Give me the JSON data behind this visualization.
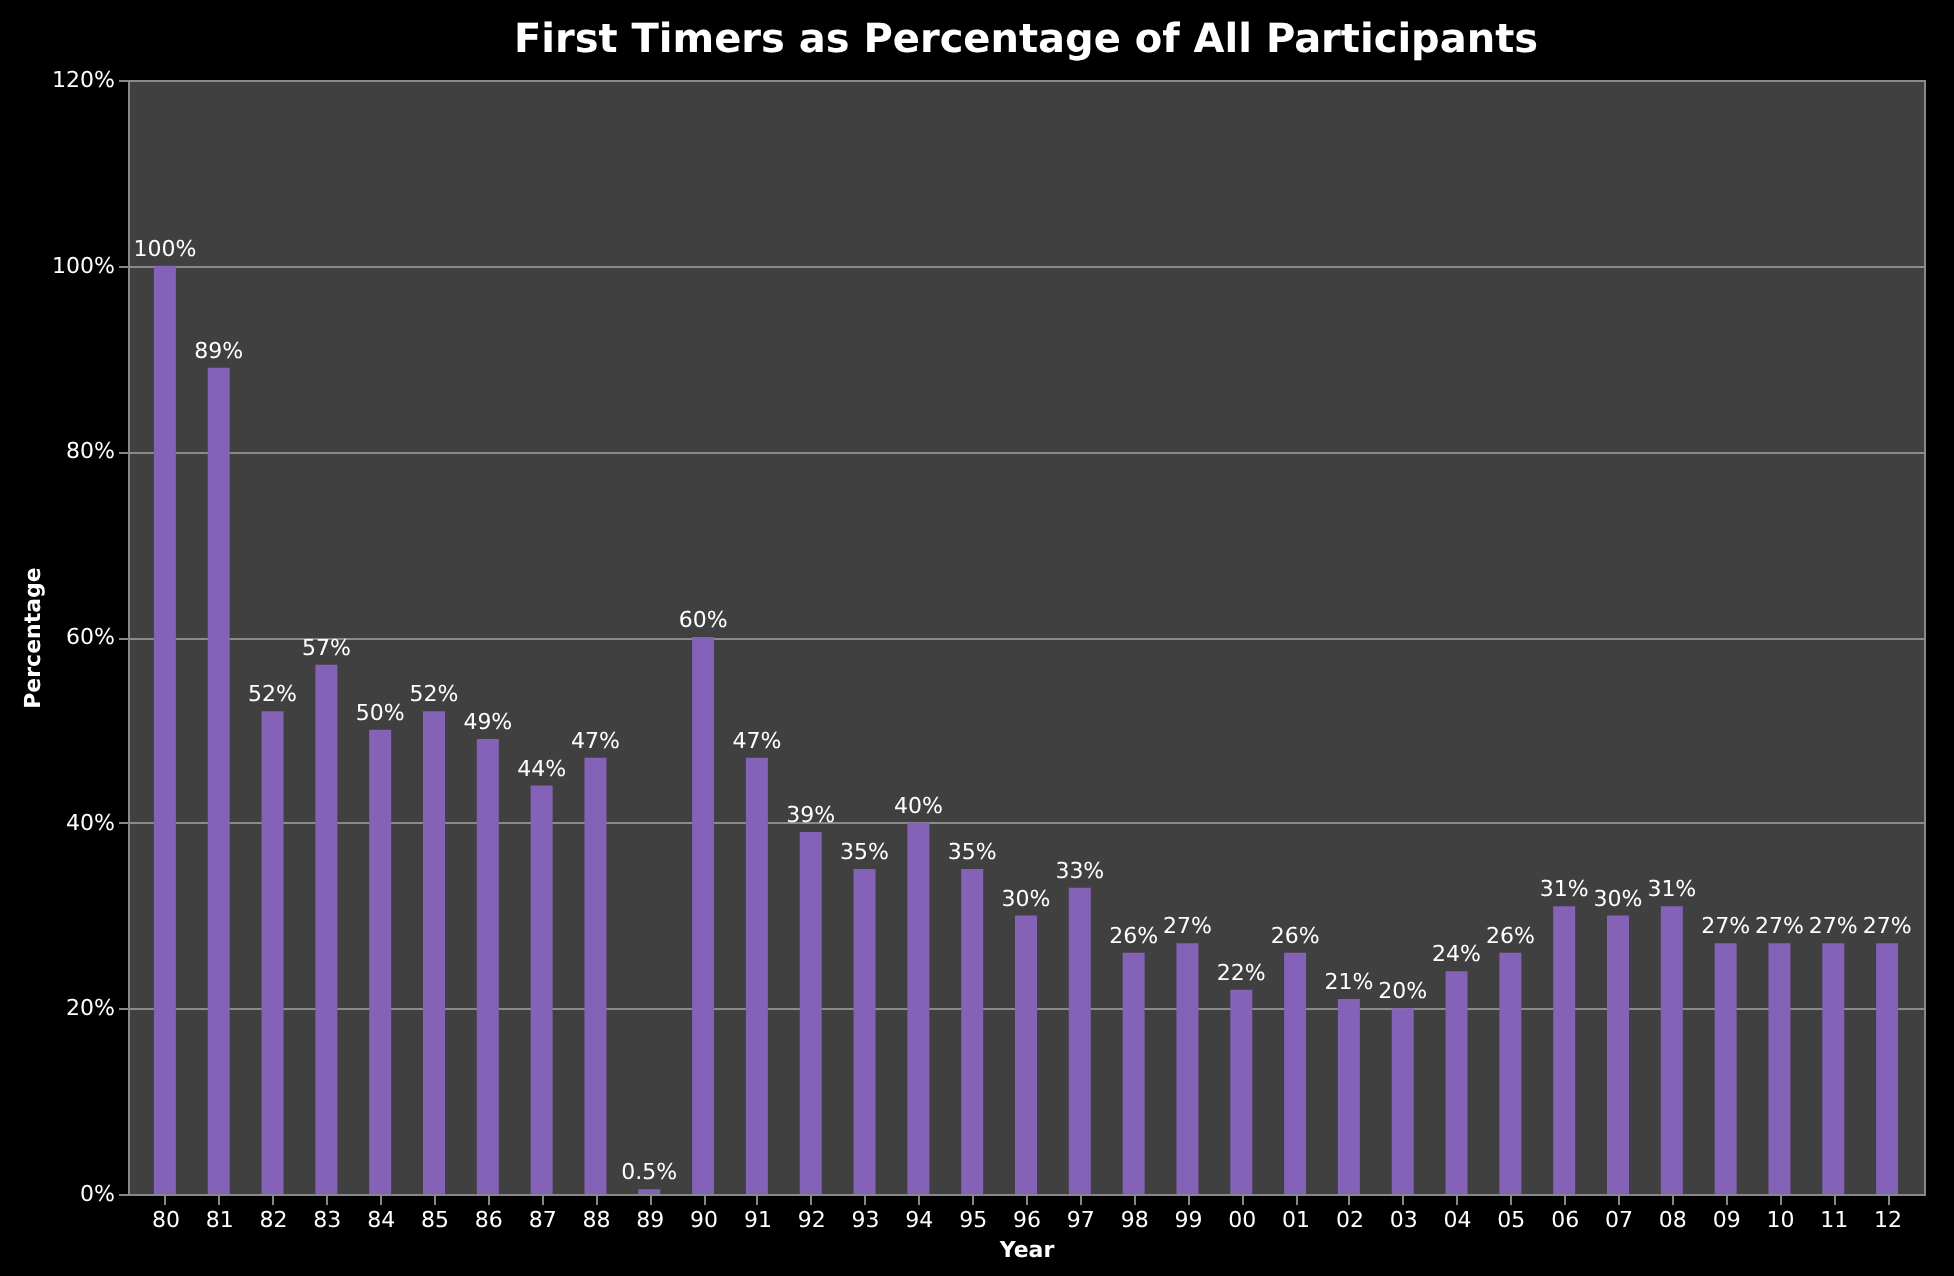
{
  "chart_data": {
    "type": "bar",
    "title": "First Timers as Percentage of All Participants",
    "xlabel": "Year",
    "ylabel": "Percentage",
    "categories": [
      "80",
      "81",
      "82",
      "83",
      "84",
      "85",
      "86",
      "87",
      "88",
      "89",
      "90",
      "91",
      "92",
      "93",
      "94",
      "95",
      "96",
      "97",
      "98",
      "99",
      "00",
      "01",
      "02",
      "03",
      "04",
      "05",
      "06",
      "07",
      "08",
      "09",
      "10",
      "11",
      "12"
    ],
    "values": [
      100,
      89,
      52,
      57,
      50,
      52,
      49,
      44,
      47,
      0.5,
      60,
      47,
      39,
      35,
      40,
      35,
      30,
      33,
      26,
      27,
      22,
      26,
      21,
      20,
      24,
      26,
      31,
      30,
      31,
      27,
      27,
      27,
      27
    ],
    "value_labels": [
      "100%",
      "89%",
      "52%",
      "57%",
      "50%",
      "52%",
      "49%",
      "44%",
      "47%",
      "0.5%",
      "60%",
      "47%",
      "39%",
      "35%",
      "40%",
      "35%",
      "30%",
      "33%",
      "26%",
      "27%",
      "22%",
      "26%",
      "21%",
      "20%",
      "24%",
      "26%",
      "31%",
      "30%",
      "31%",
      "27%",
      "27%",
      "27%",
      "27%"
    ],
    "color": "#8462b8",
    "ylim": [
      0,
      120
    ],
    "yticks": [
      {
        "value": 0,
        "label": "0%"
      },
      {
        "value": 20,
        "label": "20%"
      },
      {
        "value": 40,
        "label": "40%"
      },
      {
        "value": 60,
        "label": "60%"
      },
      {
        "value": 80,
        "label": "80%"
      },
      {
        "value": 100,
        "label": "100%"
      },
      {
        "value": 120,
        "label": "120%"
      }
    ],
    "grid": "y"
  }
}
